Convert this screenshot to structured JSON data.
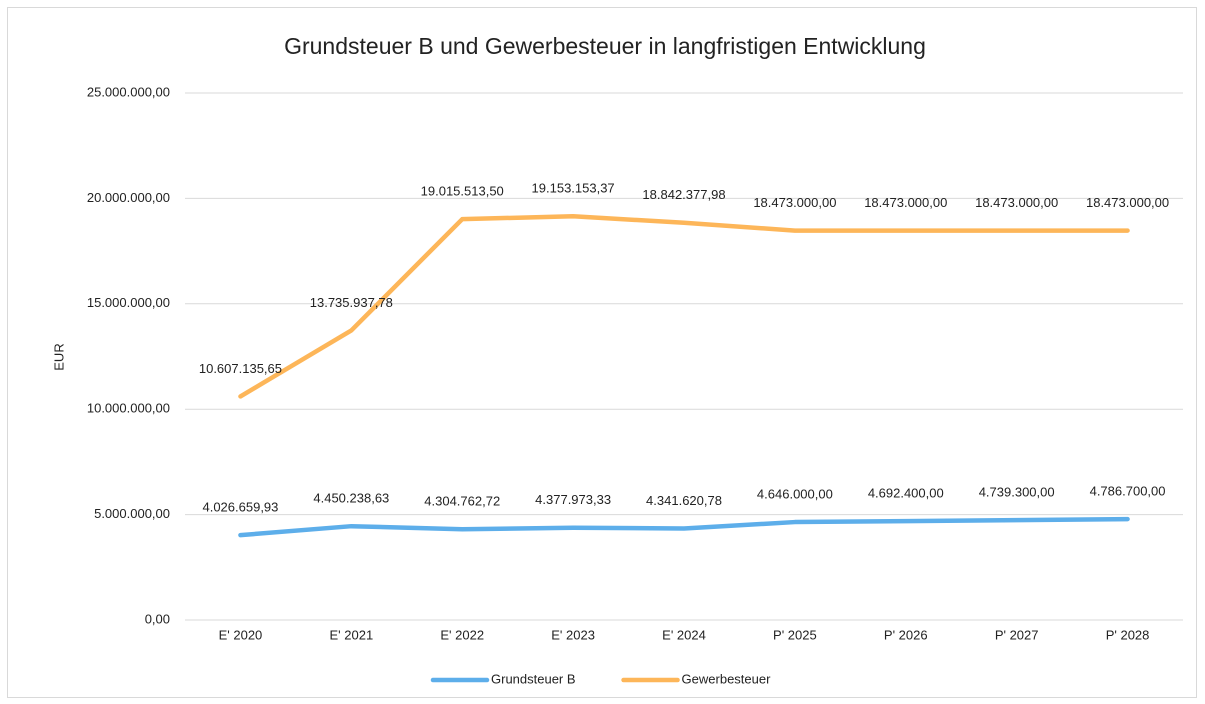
{
  "chart_data": {
    "type": "line",
    "title": "Grundsteuer B und Gewerbesteuer in langfristigen Entwicklung",
    "y_label": "EUR",
    "categories": [
      "E' 2020",
      "E' 2021",
      "E' 2022",
      "E' 2023",
      "E' 2024",
      "P' 2025",
      "P' 2026",
      "P' 2027",
      "P' 2028"
    ],
    "series": [
      {
        "name": "Grundsteuer B",
        "color": "#5daeea",
        "values": [
          4026659.93,
          4450238.63,
          4304762.72,
          4377973.33,
          4341620.78,
          4646000,
          4692400,
          4739300,
          4786700
        ],
        "value_labels": [
          "4.026.659,93",
          "4.450.238,63",
          "4.304.762,72",
          "4.377.973,33",
          "4.341.620,78",
          "4.646.000,00",
          "4.692.400,00",
          "4.739.300,00",
          "4.786.700,00"
        ]
      },
      {
        "name": "Gewerbesteuer",
        "color": "#fdb659",
        "values": [
          10607135.65,
          13735937.78,
          19015513.5,
          19153153.37,
          18842377.98,
          18473000,
          18473000,
          18473000,
          18473000
        ],
        "value_labels": [
          "10.607.135,65",
          "13.735.937,78",
          "19.015.513,50",
          "19.153.153,37",
          "18.842.377,98",
          "18.473.000,00",
          "18.473.000,00",
          "18.473.000,00",
          "18.473.000,00"
        ]
      }
    ],
    "ylim": [
      0,
      25000000
    ],
    "yticks": [
      {
        "value": 0,
        "label": "0,00"
      },
      {
        "value": 5000000,
        "label": "5.000.000,00"
      },
      {
        "value": 10000000,
        "label": "10.000.000,00"
      },
      {
        "value": 15000000,
        "label": "15.000.000,00"
      },
      {
        "value": 20000000,
        "label": "20.000.000,00"
      },
      {
        "value": 25000000,
        "label": "25.000.000,00"
      }
    ],
    "grid": true,
    "legend": "bottom"
  }
}
